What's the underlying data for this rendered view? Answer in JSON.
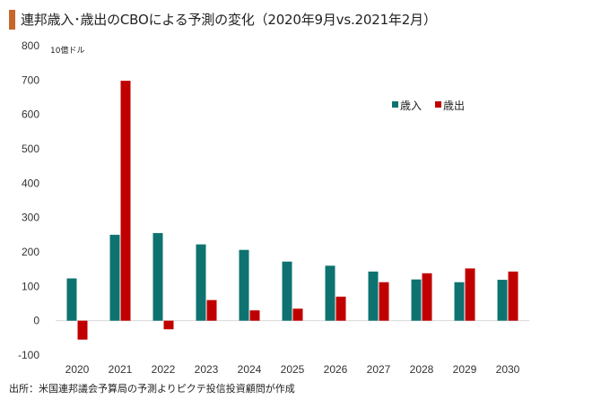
{
  "header": {
    "title": "連邦歳入･歳出のCBOによる予測の変化（2020年9月vs.2021年2月）",
    "accent_color": "#c9672b"
  },
  "footer": {
    "source": "出所：米国連邦議会予算局の予測よりピクテ投信投資顧問が作成"
  },
  "chart_data": {
    "type": "bar",
    "title": "連邦歳入･歳出のCBOによる予測の変化（2020年9月vs.2021年2月）",
    "unit_label": "10億ドル",
    "xlabel": "",
    "ylabel": "10億ドル",
    "ylim": [
      -100,
      800
    ],
    "yticks": [
      -100,
      0,
      100,
      200,
      300,
      400,
      500,
      600,
      700,
      800
    ],
    "categories": [
      "2020",
      "2021",
      "2022",
      "2023",
      "2024",
      "2025",
      "2026",
      "2027",
      "2028",
      "2029",
      "2030"
    ],
    "series": [
      {
        "name": "歳入",
        "color": "#0e7370",
        "values": [
          123,
          250,
          255,
          222,
          206,
          172,
          160,
          143,
          120,
          112,
          119
        ]
      },
      {
        "name": "歳出",
        "color": "#c00000",
        "values": [
          -55,
          698,
          -25,
          60,
          30,
          35,
          70,
          112,
          138,
          152,
          143
        ]
      }
    ],
    "legend": "top-right",
    "grid": false
  }
}
